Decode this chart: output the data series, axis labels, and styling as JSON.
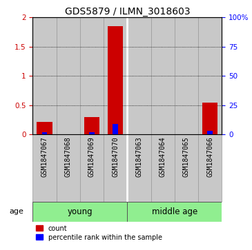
{
  "title": "GDS5879 / ILMN_3018603",
  "samples": [
    "GSM1847067",
    "GSM1847068",
    "GSM1847069",
    "GSM1847070",
    "GSM1847063",
    "GSM1847064",
    "GSM1847065",
    "GSM1847066"
  ],
  "red_values": [
    0.22,
    0.0,
    0.3,
    1.85,
    0.0,
    0.0,
    0.0,
    0.55
  ],
  "blue_values_pct": [
    2.0,
    0.0,
    2.0,
    9.0,
    0.0,
    0.0,
    0.0,
    3.0
  ],
  "ylim_left": [
    0,
    2
  ],
  "ylim_right": [
    0,
    100
  ],
  "yticks_left": [
    0,
    0.5,
    1.0,
    1.5,
    2.0
  ],
  "ytick_labels_left": [
    "0",
    "0.5",
    "1",
    "1.5",
    "2"
  ],
  "yticks_right": [
    0,
    25,
    50,
    75,
    100
  ],
  "ytick_labels_right": [
    "0",
    "25",
    "50",
    "75",
    "100%"
  ],
  "groups": [
    {
      "label": "young",
      "start": 0,
      "end": 3
    },
    {
      "label": "middle age",
      "start": 4,
      "end": 7
    }
  ],
  "group_color": "#90EE90",
  "group_separator": 3.5,
  "bar_color_red": "#CC0000",
  "bar_color_blue": "#0000FF",
  "bar_bg_color": "#C8C8C8",
  "bar_bg_edge_color": "#999999",
  "title_fontsize": 10,
  "tick_fontsize": 7.5,
  "sample_fontsize": 7,
  "age_label": "age",
  "legend_count": "count",
  "legend_percentile": "percentile rank within the sample"
}
